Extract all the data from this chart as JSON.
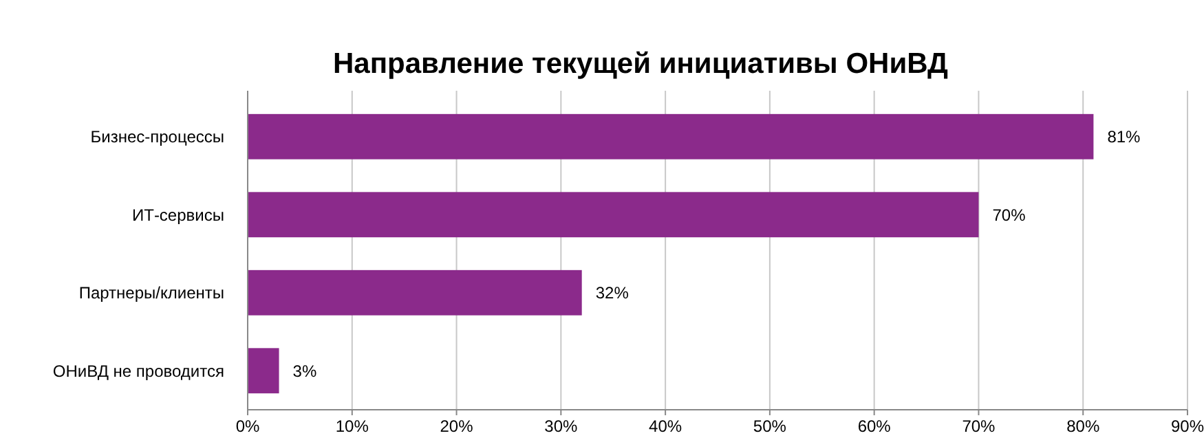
{
  "chart_data": {
    "type": "bar",
    "orientation": "horizontal",
    "title": "Направление текущей инициативы ОНиВД",
    "categories": [
      "Бизнес-процессы",
      "ИТ-сервисы",
      "Партнеры/клиенты",
      "ОНиВД не проводится"
    ],
    "values": [
      81,
      70,
      32,
      3
    ],
    "color": "#8b2a8b",
    "value_labels": [
      "81%",
      "70%",
      "32%",
      "3%"
    ],
    "xlim": [
      0,
      90
    ],
    "xticks": [
      {
        "value": 0,
        "label": "0%"
      },
      {
        "value": 10,
        "label": "10%"
      },
      {
        "value": 20,
        "label": "20%"
      },
      {
        "value": 30,
        "label": "30%"
      },
      {
        "value": 40,
        "label": "40%"
      },
      {
        "value": 50,
        "label": "50%"
      },
      {
        "value": 60,
        "label": "60%"
      },
      {
        "value": 70,
        "label": "70%"
      },
      {
        "value": 80,
        "label": "80%"
      },
      {
        "value": 90,
        "label": "90%"
      }
    ],
    "grid": "x"
  }
}
